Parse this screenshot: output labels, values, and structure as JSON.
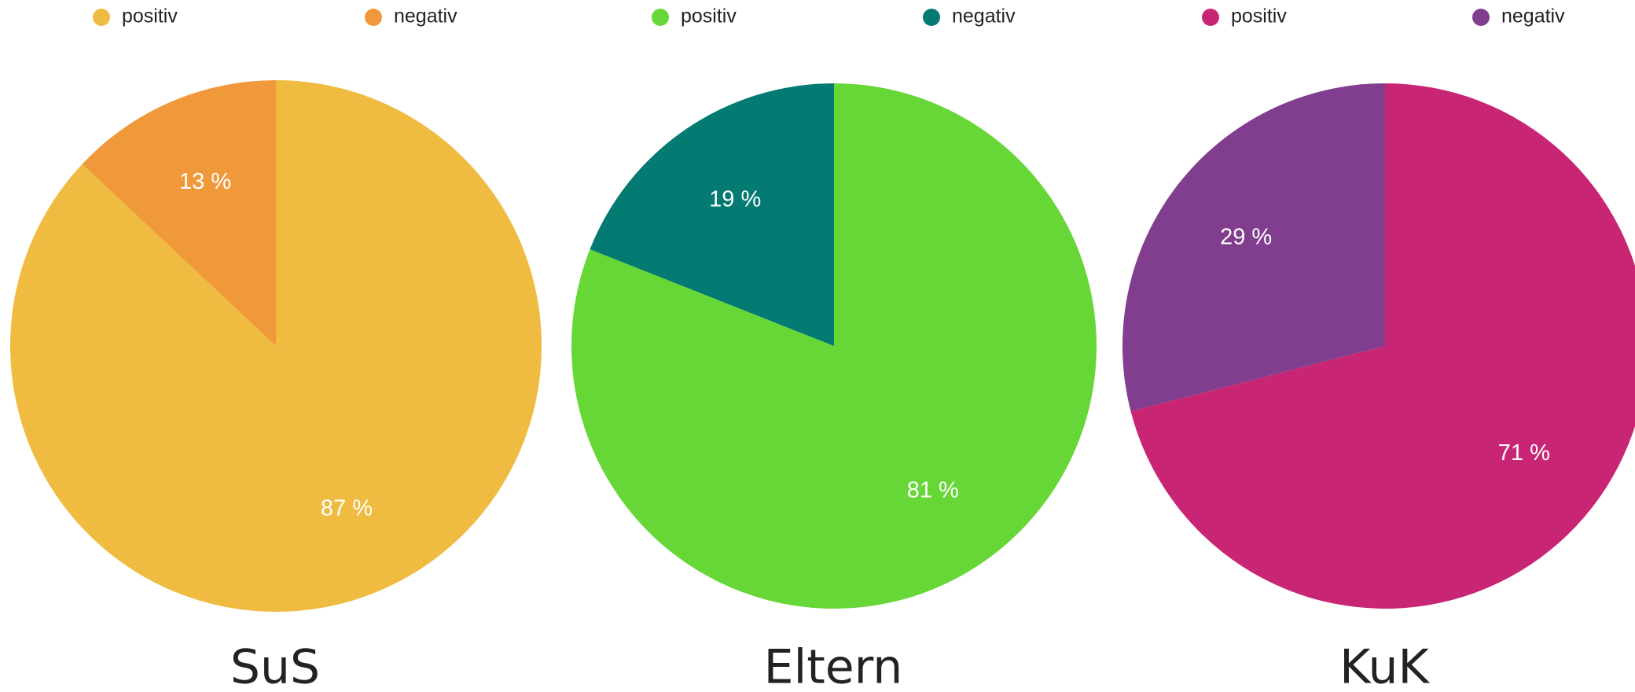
{
  "chart_data": [
    {
      "type": "pie",
      "title": "SuS",
      "categories": [
        "positiv",
        "negativ"
      ],
      "values": [
        87,
        13
      ],
      "value_labels": [
        "87 %",
        "13 %"
      ],
      "colors": [
        "#efbb40",
        "#f0993a"
      ]
    },
    {
      "type": "pie",
      "title": "Eltern",
      "categories": [
        "positiv",
        "negativ"
      ],
      "values": [
        81,
        19
      ],
      "value_labels": [
        "81 %",
        "19 %"
      ],
      "colors": [
        "#66d736",
        "#037a72"
      ]
    },
    {
      "type": "pie",
      "title": "KuK",
      "categories": [
        "positiv",
        "negativ"
      ],
      "values": [
        71,
        29
      ],
      "value_labels": [
        "71 %",
        "29 %"
      ],
      "colors": [
        "#c92575",
        "#823e8e"
      ]
    }
  ]
}
